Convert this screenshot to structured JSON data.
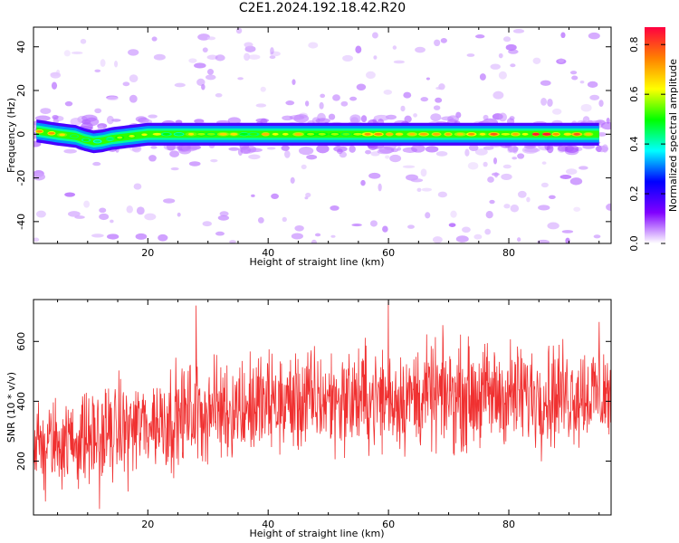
{
  "title": "C2E1.2024.192.18.42.R20",
  "charts": [
    {
      "type": "heatmap",
      "xlabel": "Height of straight line (km)",
      "ylabel": "Frequency (Hz)",
      "xlim": [
        1,
        97
      ],
      "ylim": [
        -50,
        49
      ],
      "xticks": [
        20,
        40,
        60,
        80
      ],
      "yticks": [
        -40,
        -20,
        0,
        20,
        40
      ],
      "colorbar": {
        "label": "Normalized spectral amplitude",
        "range": [
          0,
          0.87
        ],
        "ticks": [
          0.0,
          0.2,
          0.4,
          0.6,
          0.8
        ],
        "tick_labels": [
          "0.0",
          "0.2",
          "0.4",
          "0.6",
          "0.8"
        ],
        "colormap": "gist_rainbow_r",
        "colors": [
          "#ffffff",
          "#8000ff",
          "#0000ff",
          "#00ffff",
          "#00ff00",
          "#ffff00",
          "#ff8000",
          "#ff0040"
        ]
      },
      "ridge": [
        {
          "x": 1.5,
          "y": 1.5,
          "amp": 0.75
        },
        {
          "x": 5,
          "y": 0,
          "amp": 0.8
        },
        {
          "x": 8,
          "y": -1,
          "amp": 0.6
        },
        {
          "x": 9.5,
          "y": -2.5,
          "amp": 0.55
        },
        {
          "x": 11,
          "y": -3.5,
          "amp": 0.65
        },
        {
          "x": 12.5,
          "y": -3,
          "amp": 0.5
        },
        {
          "x": 14,
          "y": -2,
          "amp": 0.5
        },
        {
          "x": 17,
          "y": -1,
          "amp": 0.65
        },
        {
          "x": 20,
          "y": 0,
          "amp": 0.6
        },
        {
          "x": 95,
          "y": 0,
          "amp": 0.85
        }
      ]
    },
    {
      "type": "line",
      "xlabel": "Height of straight line (km)",
      "ylabel": "SNR (10 * v/v)",
      "xlim": [
        1,
        97
      ],
      "ylim": [
        20,
        740
      ],
      "xticks": [
        20,
        40,
        60,
        80
      ],
      "yticks": [
        200,
        400,
        600
      ],
      "color": "#f03030",
      "series": [
        {
          "values": [
            {
              "x": 1,
              "mean": 250,
              "spread": 130
            },
            {
              "x": 10,
              "mean": 275,
              "spread": 140
            },
            {
              "x": 20,
              "mean": 325,
              "spread": 150
            },
            {
              "x": 30,
              "mean": 370,
              "spread": 160
            },
            {
              "x": 40,
              "mean": 390,
              "spread": 160
            },
            {
              "x": 50,
              "mean": 405,
              "spread": 160
            },
            {
              "x": 60,
              "mean": 410,
              "spread": 160
            },
            {
              "x": 70,
              "mean": 420,
              "spread": 160
            },
            {
              "x": 80,
              "mean": 420,
              "spread": 160
            },
            {
              "x": 90,
              "mean": 425,
              "spread": 160
            },
            {
              "x": 97,
              "mean": 425,
              "spread": 160
            }
          ]
        }
      ],
      "peaks": [
        {
          "x": 28,
          "y": 720
        },
        {
          "x": 60,
          "y": 735
        },
        {
          "x": 95,
          "y": 665
        },
        {
          "x": 12,
          "y": 40
        },
        {
          "x": 3,
          "y": 65
        }
      ]
    }
  ]
}
